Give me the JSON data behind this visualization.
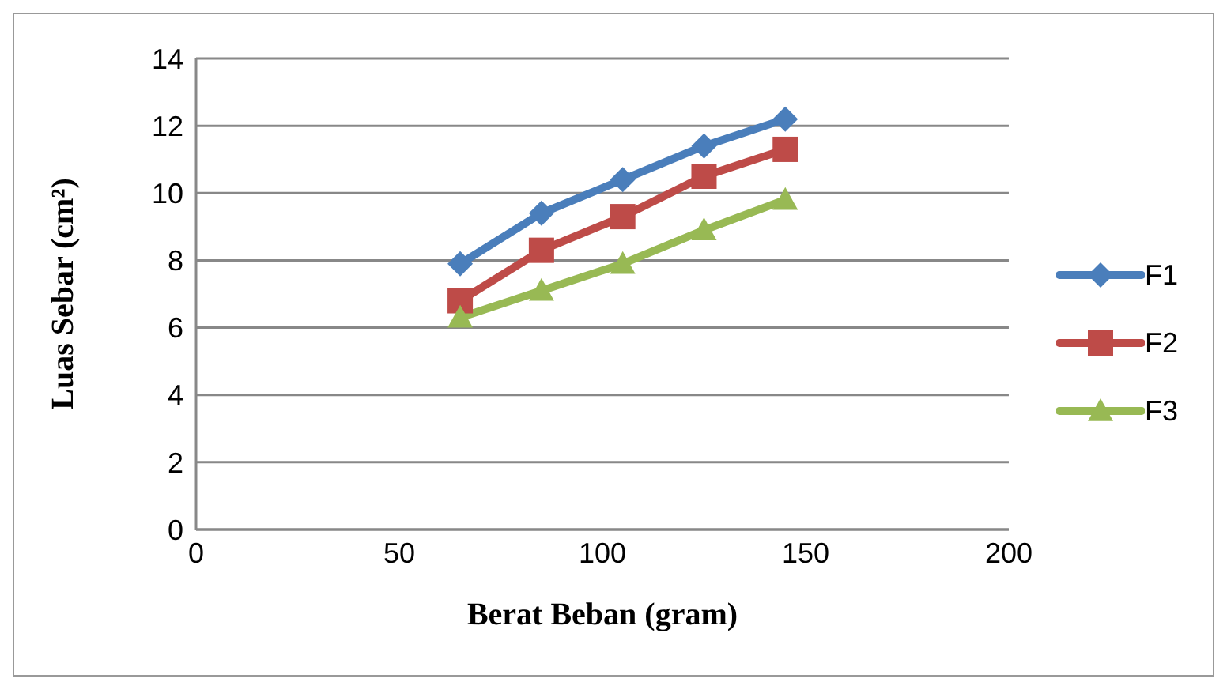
{
  "chart_data": {
    "type": "line",
    "xlabel": "Berat Beban (gram)",
    "ylabel": "Luas Sebar (cm²)",
    "x": [
      65,
      85,
      105,
      125,
      145
    ],
    "series": [
      {
        "name": "F1",
        "color": "#4a7ebb",
        "marker": "diamond",
        "values": [
          7.9,
          9.4,
          10.4,
          11.4,
          12.2
        ]
      },
      {
        "name": "F2",
        "color": "#be4b48",
        "marker": "square",
        "values": [
          6.8,
          8.3,
          9.3,
          10.5,
          11.3
        ]
      },
      {
        "name": "F3",
        "color": "#98b954",
        "marker": "triangle",
        "values": [
          6.3,
          7.1,
          7.9,
          8.9,
          9.8
        ]
      }
    ],
    "xlim": [
      0,
      200
    ],
    "xticks": [
      0,
      50,
      100,
      150,
      200
    ],
    "ylim": [
      0,
      14
    ],
    "yticks": [
      0,
      2,
      4,
      6,
      8,
      10,
      12,
      14
    ],
    "grid": "y",
    "legend": "right"
  }
}
